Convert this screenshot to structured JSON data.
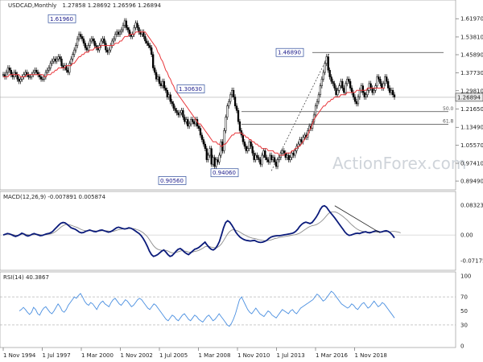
{
  "chart_data": {
    "type": "candlestick",
    "symbol": "USDCAD,Monthly",
    "ohlc": "1.27858 1.28692 1.26596 1.26894",
    "current_price": "1.26894",
    "colors": {
      "candle": "#000000",
      "ma": "#e8363a",
      "macd": "#0a1a7a",
      "signal": "#8c8c8c",
      "rsi": "#4a8fe0",
      "current_box": "#e8e8e8",
      "price_label_border": "#2c4a9a"
    },
    "x_ticks": [
      "1 Nov 1994",
      "1 Jul 1997",
      "1 Mar 2000",
      "1 Nov 2002",
      "1 Jul 2005",
      "1 Mar 2008",
      "1 Nov 2010",
      "1 Jul 2013",
      "1 Mar 2016",
      "1 Nov 2018"
    ],
    "price_panel": {
      "ylim": [
        0.87,
        1.66
      ],
      "y_ticks": [
        "1.61970",
        "1.53810",
        "1.45890",
        "1.37730",
        "1.29810",
        "1.21650",
        "1.13490",
        "1.05570",
        "0.97410",
        "0.89490"
      ],
      "price_labels": [
        "1.61960",
        "1.30630",
        "0.90560",
        "0.94060",
        "1.46890"
      ],
      "fib_levels": [
        {
          "label": "50.0",
          "value": 1.2048
        },
        {
          "label": "61.8",
          "value": 1.1482
        }
      ],
      "resistance": 1.4689,
      "closes": [
        1.37,
        1.36,
        1.38,
        1.4,
        1.39,
        1.37,
        1.36,
        1.38,
        1.37,
        1.35,
        1.34,
        1.35,
        1.36,
        1.37,
        1.38,
        1.37,
        1.36,
        1.36,
        1.37,
        1.38,
        1.39,
        1.38,
        1.37,
        1.36,
        1.35,
        1.35,
        1.36,
        1.38,
        1.39,
        1.4,
        1.42,
        1.43,
        1.44,
        1.43,
        1.44,
        1.45,
        1.44,
        1.41,
        1.4,
        1.41,
        1.39,
        1.38,
        1.42,
        1.44,
        1.46,
        1.48,
        1.5,
        1.53,
        1.55,
        1.54,
        1.53,
        1.51,
        1.49,
        1.48,
        1.5,
        1.52,
        1.53,
        1.52,
        1.5,
        1.49,
        1.48,
        1.5,
        1.52,
        1.53,
        1.51,
        1.48,
        1.47,
        1.48,
        1.5,
        1.52,
        1.53,
        1.55,
        1.56,
        1.55,
        1.56,
        1.57,
        1.59,
        1.61,
        1.58,
        1.57,
        1.55,
        1.54,
        1.55,
        1.58,
        1.6,
        1.58,
        1.56,
        1.55,
        1.56,
        1.54,
        1.52,
        1.51,
        1.5,
        1.49,
        1.46,
        1.4,
        1.38,
        1.35,
        1.36,
        1.33,
        1.32,
        1.34,
        1.31,
        1.3,
        1.27,
        1.28,
        1.25,
        1.24,
        1.22,
        1.21,
        1.2,
        1.19,
        1.2,
        1.21,
        1.18,
        1.16,
        1.17,
        1.14,
        1.15,
        1.17,
        1.16,
        1.15,
        1.17,
        1.14,
        1.13,
        1.1,
        1.08,
        1.06,
        1.04,
        0.99,
        1.01,
        1.04,
        0.97,
        1.0,
        0.96,
        0.99,
        0.98,
        1.01,
        1.07,
        1.03,
        1.12,
        1.18,
        1.23,
        1.25,
        1.28,
        1.3,
        1.27,
        1.23,
        1.21,
        1.16,
        1.12,
        1.1,
        1.07,
        1.05,
        1.03,
        1.04,
        1.07,
        1.05,
        1.02,
        0.99,
        1.01,
        1.0,
        0.99,
        0.97,
        1.01,
        1.03,
        1.0,
        0.99,
        0.98,
        1.01,
        0.99,
        1.0,
        0.98,
        0.96,
        0.99,
        1.0,
        1.02,
        1.03,
        1.02,
        1.0,
        1.01,
        0.99,
        1.0,
        1.02,
        1.01,
        1.03,
        1.05,
        1.06,
        1.08,
        1.07,
        1.09,
        1.1,
        1.09,
        1.12,
        1.14,
        1.13,
        1.16,
        1.19,
        1.23,
        1.25,
        1.28,
        1.32,
        1.35,
        1.38,
        1.42,
        1.45,
        1.39,
        1.36,
        1.34,
        1.33,
        1.31,
        1.28,
        1.3,
        1.32,
        1.34,
        1.31,
        1.29,
        1.33,
        1.35,
        1.34,
        1.31,
        1.29,
        1.27,
        1.25,
        1.24,
        1.27,
        1.3,
        1.32,
        1.29,
        1.27,
        1.28,
        1.3,
        1.33,
        1.31,
        1.29,
        1.3,
        1.32,
        1.36,
        1.35,
        1.33,
        1.31,
        1.33,
        1.36,
        1.34,
        1.31,
        1.29,
        1.3,
        1.28,
        1.27
      ],
      "ma": [
        1.36,
        1.36,
        1.36,
        1.36,
        1.37,
        1.37,
        1.37,
        1.37,
        1.37,
        1.37,
        1.37,
        1.36,
        1.36,
        1.36,
        1.36,
        1.37,
        1.37,
        1.37,
        1.37,
        1.37,
        1.37,
        1.37,
        1.37,
        1.37,
        1.37,
        1.37,
        1.36,
        1.36,
        1.37,
        1.37,
        1.37,
        1.38,
        1.38,
        1.39,
        1.39,
        1.4,
        1.4,
        1.4,
        1.4,
        1.4,
        1.41,
        1.41,
        1.41,
        1.41,
        1.42,
        1.42,
        1.43,
        1.44,
        1.45,
        1.45,
        1.46,
        1.46,
        1.47,
        1.47,
        1.47,
        1.48,
        1.48,
        1.48,
        1.49,
        1.49,
        1.49,
        1.49,
        1.5,
        1.5,
        1.5,
        1.5,
        1.5,
        1.5,
        1.5,
        1.5,
        1.5,
        1.51,
        1.51,
        1.51,
        1.52,
        1.52,
        1.53,
        1.54,
        1.54,
        1.54,
        1.55,
        1.55,
        1.55,
        1.55,
        1.56,
        1.56,
        1.56,
        1.56,
        1.56,
        1.56,
        1.56,
        1.55,
        1.54,
        1.53,
        1.52,
        1.51,
        1.5,
        1.49,
        1.47,
        1.46,
        1.44,
        1.43,
        1.41,
        1.39,
        1.38,
        1.36,
        1.35,
        1.33,
        1.32,
        1.3,
        1.29,
        1.28,
        1.27,
        1.26,
        1.25,
        1.24,
        1.23,
        1.22,
        1.21,
        1.2,
        1.19,
        1.18,
        1.17,
        1.16,
        1.15,
        1.15,
        1.14,
        1.13,
        1.12,
        1.11,
        1.1,
        1.09,
        1.08,
        1.07,
        1.07,
        1.07,
        1.06,
        1.06,
        1.05,
        1.05,
        1.06,
        1.06,
        1.07,
        1.08,
        1.09,
        1.1,
        1.1,
        1.11,
        1.11,
        1.11,
        1.11,
        1.11,
        1.1,
        1.1,
        1.09,
        1.09,
        1.08,
        1.08,
        1.07,
        1.07,
        1.06,
        1.06,
        1.05,
        1.05,
        1.04,
        1.04,
        1.04,
        1.04,
        1.03,
        1.03,
        1.03,
        1.03,
        1.02,
        1.02,
        1.02,
        1.01,
        1.01,
        1.01,
        1.01,
        1.02,
        1.02,
        1.02,
        1.02,
        1.03,
        1.03,
        1.04,
        1.04,
        1.05,
        1.05,
        1.06,
        1.07,
        1.08,
        1.09,
        1.1,
        1.12,
        1.13,
        1.15,
        1.17,
        1.18,
        1.19,
        1.2,
        1.21,
        1.22,
        1.23,
        1.23,
        1.24,
        1.25,
        1.25,
        1.26,
        1.26,
        1.27,
        1.27,
        1.27,
        1.27,
        1.28,
        1.28,
        1.28,
        1.28,
        1.29,
        1.29,
        1.29,
        1.29,
        1.29,
        1.29,
        1.3,
        1.3,
        1.3,
        1.3,
        1.3,
        1.3,
        1.3,
        1.31,
        1.31,
        1.31,
        1.31,
        1.31,
        1.31,
        1.31,
        1.31,
        1.31,
        1.31,
        1.31,
        1.31
      ]
    },
    "macd_panel": {
      "label": "MACD(12,26,9) -0.007891 0.005874",
      "ylim": [
        -0.09,
        0.095
      ],
      "y_ticks": [
        "0.083235",
        "0.00",
        "-0.071752"
      ],
      "macd": [
        0.0,
        0.002,
        0.004,
        0.003,
        0.001,
        -0.002,
        -0.004,
        -0.002,
        0.001,
        0.005,
        0.003,
        -0.001,
        -0.003,
        -0.001,
        0.002,
        0.004,
        0.002,
        0.0,
        -0.002,
        -0.001,
        0.001,
        0.003,
        0.004,
        0.006,
        0.01,
        0.016,
        0.022,
        0.028,
        0.033,
        0.035,
        0.034,
        0.03,
        0.025,
        0.02,
        0.018,
        0.016,
        0.012,
        0.008,
        0.006,
        0.007,
        0.01,
        0.012,
        0.014,
        0.012,
        0.01,
        0.009,
        0.011,
        0.013,
        0.014,
        0.012,
        0.01,
        0.008,
        0.009,
        0.012,
        0.016,
        0.02,
        0.022,
        0.02,
        0.018,
        0.017,
        0.018,
        0.02,
        0.019,
        0.016,
        0.012,
        0.008,
        0.004,
        -0.002,
        -0.01,
        -0.02,
        -0.032,
        -0.045,
        -0.055,
        -0.06,
        -0.058,
        -0.055,
        -0.05,
        -0.045,
        -0.042,
        -0.048,
        -0.055,
        -0.06,
        -0.058,
        -0.052,
        -0.045,
        -0.04,
        -0.038,
        -0.042,
        -0.048,
        -0.052,
        -0.055,
        -0.05,
        -0.045,
        -0.04,
        -0.038,
        -0.035,
        -0.03,
        -0.025,
        -0.02,
        -0.028,
        -0.035,
        -0.04,
        -0.042,
        -0.038,
        -0.03,
        -0.018,
        0.0,
        0.02,
        0.035,
        0.04,
        0.036,
        0.028,
        0.018,
        0.008,
        0.0,
        -0.006,
        -0.01,
        -0.013,
        -0.015,
        -0.016,
        -0.017,
        -0.016,
        -0.015,
        -0.018,
        -0.02,
        -0.021,
        -0.02,
        -0.018,
        -0.015,
        -0.01,
        -0.006,
        -0.004,
        -0.003,
        -0.002,
        -0.002,
        -0.001,
        0.0,
        0.001,
        0.002,
        0.003,
        0.004,
        0.006,
        0.01,
        0.016,
        0.024,
        0.03,
        0.034,
        0.036,
        0.034,
        0.032,
        0.035,
        0.042,
        0.05,
        0.06,
        0.072,
        0.08,
        0.082,
        0.078,
        0.07,
        0.062,
        0.055,
        0.048,
        0.04,
        0.032,
        0.024,
        0.016,
        0.008,
        0.002,
        -0.001,
        0.0,
        0.002,
        0.004,
        0.005,
        0.004,
        0.006,
        0.008,
        0.009,
        0.007,
        0.006,
        0.008,
        0.01,
        0.012,
        0.01,
        0.008,
        0.009,
        0.011,
        0.012,
        0.01,
        0.006,
        0.0,
        -0.008
      ],
      "signal": [
        0.0,
        0.001,
        0.002,
        0.002,
        0.002,
        0.001,
        -0.001,
        -0.001,
        0.0,
        0.002,
        0.003,
        0.002,
        0.001,
        0.0,
        0.0,
        0.001,
        0.002,
        0.002,
        0.001,
        0.0,
        0.0,
        0.001,
        0.002,
        0.003,
        0.005,
        0.008,
        0.012,
        0.017,
        0.022,
        0.026,
        0.029,
        0.03,
        0.029,
        0.027,
        0.025,
        0.023,
        0.021,
        0.018,
        0.015,
        0.013,
        0.012,
        0.012,
        0.012,
        0.012,
        0.012,
        0.011,
        0.011,
        0.011,
        0.012,
        0.012,
        0.012,
        0.011,
        0.01,
        0.01,
        0.011,
        0.013,
        0.015,
        0.016,
        0.017,
        0.017,
        0.017,
        0.018,
        0.018,
        0.018,
        0.017,
        0.015,
        0.013,
        0.01,
        0.006,
        0.001,
        -0.005,
        -0.013,
        -0.022,
        -0.03,
        -0.036,
        -0.04,
        -0.042,
        -0.043,
        -0.043,
        -0.043,
        -0.045,
        -0.048,
        -0.05,
        -0.05,
        -0.049,
        -0.047,
        -0.045,
        -0.044,
        -0.045,
        -0.046,
        -0.048,
        -0.048,
        -0.048,
        -0.046,
        -0.045,
        -0.043,
        -0.04,
        -0.037,
        -0.033,
        -0.032,
        -0.032,
        -0.034,
        -0.035,
        -0.036,
        -0.035,
        -0.031,
        -0.025,
        -0.016,
        -0.006,
        0.003,
        0.01,
        0.014,
        0.015,
        0.013,
        0.011,
        0.008,
        0.004,
        0.001,
        -0.002,
        -0.005,
        -0.007,
        -0.009,
        -0.01,
        -0.011,
        -0.013,
        -0.014,
        -0.015,
        -0.016,
        -0.016,
        -0.015,
        -0.014,
        -0.012,
        -0.01,
        -0.009,
        -0.007,
        -0.006,
        -0.005,
        -0.004,
        -0.003,
        -0.002,
        -0.001,
        0.0,
        0.001,
        0.003,
        0.005,
        0.009,
        0.013,
        0.017,
        0.021,
        0.024,
        0.026,
        0.027,
        0.029,
        0.032,
        0.036,
        0.041,
        0.047,
        0.054,
        0.06,
        0.064,
        0.065,
        0.065,
        0.063,
        0.06,
        0.056,
        0.052,
        0.047,
        0.042,
        0.036,
        0.03,
        0.025,
        0.02,
        0.016,
        0.013,
        0.011,
        0.01,
        0.009,
        0.008,
        0.008,
        0.008,
        0.008,
        0.008,
        0.008,
        0.008,
        0.009,
        0.009,
        0.009,
        0.009,
        0.009,
        0.01,
        0.01,
        0.009,
        0.008,
        0.006
      ],
      "divergence_line": [
        [
          0.082,
          161
        ],
        [
          0.006,
          183
        ]
      ]
    },
    "rsi_panel": {
      "label": "RSI(14) 40.3867",
      "ylim": [
        0,
        100
      ],
      "y_ticks": [
        "100",
        "70",
        "50",
        "30",
        "0"
      ],
      "levels": [
        70,
        30
      ],
      "values": [
        50,
        52,
        55,
        52,
        48,
        45,
        48,
        55,
        52,
        46,
        44,
        50,
        54,
        56,
        52,
        48,
        46,
        50,
        55,
        60,
        56,
        50,
        48,
        52,
        58,
        62,
        66,
        70,
        68,
        72,
        75,
        70,
        64,
        60,
        58,
        62,
        60,
        56,
        52,
        58,
        62,
        64,
        60,
        58,
        56,
        62,
        66,
        68,
        64,
        60,
        58,
        62,
        66,
        64,
        60,
        56,
        58,
        62,
        66,
        68,
        66,
        62,
        58,
        54,
        52,
        56,
        60,
        58,
        54,
        50,
        46,
        42,
        38,
        36,
        40,
        44,
        42,
        38,
        36,
        40,
        44,
        46,
        42,
        38,
        36,
        40,
        44,
        42,
        38,
        36,
        34,
        38,
        42,
        44,
        40,
        36,
        38,
        42,
        46,
        42,
        38,
        34,
        30,
        28,
        32,
        38,
        46,
        56,
        66,
        70,
        64,
        58,
        52,
        48,
        46,
        50,
        54,
        50,
        46,
        44,
        42,
        46,
        50,
        48,
        44,
        42,
        40,
        44,
        48,
        52,
        50,
        48,
        46,
        50,
        52,
        48,
        46,
        50,
        54,
        56,
        58,
        60,
        62,
        64,
        66,
        70,
        74,
        72,
        68,
        64,
        66,
        70,
        74,
        78,
        76,
        72,
        68,
        64,
        60,
        58,
        56,
        54,
        56,
        60,
        58,
        54,
        52,
        56,
        60,
        62,
        58,
        54,
        56,
        60,
        64,
        60,
        56,
        58,
        62,
        60,
        56,
        52,
        48,
        44,
        40
      ]
    },
    "watermark": "ActionForex.com"
  }
}
